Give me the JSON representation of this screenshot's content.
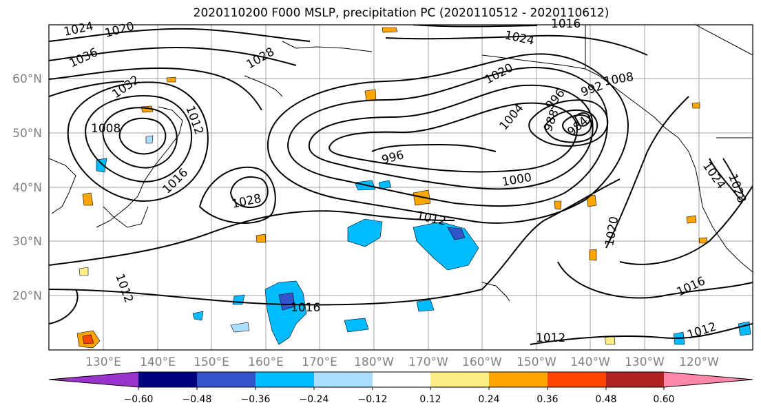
{
  "title": "2020110200 F000 MSLP, precipitation PC (2020110512 - 2020110612)",
  "lat_labels": [
    "60°N",
    "50°N",
    "40°N",
    "30°N",
    "20°N"
  ],
  "lon_labels": [
    "130°E",
    "140°E",
    "150°E",
    "160°E",
    "170°E",
    "180°W",
    "170°W",
    "160°W",
    "150°W",
    "140°W",
    "130°W",
    "120°W"
  ],
  "contour_labels": [
    "1024",
    "1020",
    "1036",
    "1032",
    "1028",
    "1024",
    "1016",
    "1020",
    "1008",
    "1008",
    "1012",
    "996",
    "992",
    "988",
    "984",
    "1004",
    "1016",
    "1028",
    "996",
    "1000",
    "1024",
    "1028",
    "1012",
    "1020",
    "1012",
    "1016",
    "1016",
    "1012",
    "1012"
  ],
  "colorbar": {
    "colors": [
      "#9933cc",
      "#000080",
      "#3355cc",
      "#00bbff",
      "#aaddff",
      "#ffffff",
      "#ffee88",
      "#ffa500",
      "#ff4500",
      "#b22222",
      "#ff88aa"
    ],
    "ticks": [
      "−0.60",
      "−0.48",
      "−0.36",
      "−0.24",
      "−0.12",
      "0.12",
      "0.24",
      "0.36",
      "0.48",
      "0.60"
    ]
  }
}
